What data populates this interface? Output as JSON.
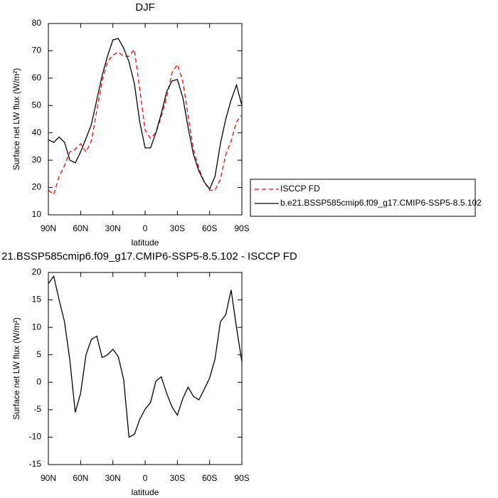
{
  "chart_data": [
    {
      "type": "line",
      "title": "DJF",
      "xlabel": "latitude",
      "ylabel": "Surface net LW flux (W/m²)",
      "x": [
        90,
        85,
        80,
        75,
        70,
        65,
        60,
        55,
        50,
        45,
        40,
        35,
        30,
        25,
        20,
        15,
        10,
        5,
        0,
        -5,
        -10,
        -15,
        -20,
        -25,
        -30,
        -35,
        -40,
        -45,
        -50,
        -55,
        -60,
        -65,
        -70,
        -75,
        -80,
        -85,
        -90
      ],
      "series": [
        {
          "name": "ISCCP FD",
          "color": "#ff0000",
          "style": "dashed",
          "values": [
            19,
            17.5,
            24,
            28,
            33,
            34,
            36,
            33,
            37,
            48,
            59,
            66,
            68.5,
            69.5,
            68,
            68,
            70.5,
            56,
            41,
            38,
            40,
            46,
            53,
            62,
            65,
            59,
            46,
            34,
            27,
            22,
            19,
            19,
            23,
            32,
            37,
            44,
            46.5
          ]
        },
        {
          "name": "b.e21.BSSP585cmip6.f09_g17.CMIP6-SSP5-8.5.102",
          "color": "#000000",
          "style": "solid",
          "values": [
            37.5,
            36.5,
            38.5,
            36.5,
            30,
            29,
            33,
            38,
            43,
            52,
            61,
            68,
            74,
            74.5,
            71,
            66,
            58,
            44,
            34.5,
            34.5,
            40,
            47,
            55,
            59,
            59.5,
            53,
            42,
            32,
            26,
            22,
            19.5,
            24,
            36,
            45,
            52,
            57.5,
            50
          ]
        }
      ],
      "xlim": [
        90,
        -90
      ],
      "xticks": [
        {
          "value": 90,
          "label": "90N"
        },
        {
          "value": 60,
          "label": "60N"
        },
        {
          "value": 30,
          "label": "30N"
        },
        0,
        {
          "value": -30,
          "label": "30S"
        },
        {
          "value": -60,
          "label": "60S"
        },
        {
          "value": -90,
          "label": "90S"
        }
      ],
      "ylim": [
        10,
        80
      ],
      "yticks": [
        10,
        20,
        30,
        40,
        50,
        60,
        70,
        80
      ],
      "legend": "right"
    },
    {
      "type": "line",
      "title": "21.BSSP585cmip6.f09_g17.CMIP6-SSP5-8.5.102 - ISCCP FD",
      "xlabel": "latitude",
      "ylabel": "Surface net LW flux (W/m²)",
      "x": [
        90,
        85,
        80,
        75,
        70,
        65,
        60,
        55,
        50,
        45,
        40,
        35,
        30,
        25,
        20,
        15,
        10,
        5,
        0,
        -5,
        -10,
        -15,
        -20,
        -25,
        -30,
        -35,
        -40,
        -45,
        -50,
        -55,
        -60,
        -65,
        -70,
        -75,
        -80,
        -85,
        -90
      ],
      "series": [
        {
          "color": "#000000",
          "style": "solid",
          "values": [
            18,
            19.3,
            15,
            11,
            4,
            -5.5,
            -2,
            5,
            7.8,
            8.4,
            4.5,
            5,
            6,
            4.7,
            0.5,
            -10,
            -9.5,
            -6.8,
            -4.9,
            -3.7,
            0.2,
            1,
            -2,
            -4.5,
            -6,
            -3,
            -0.9,
            -2.6,
            -3.2,
            -1.3,
            0.8,
            4.2,
            11,
            12.3,
            16.8,
            10,
            3.7
          ]
        }
      ],
      "xlim": [
        90,
        -90
      ],
      "xticks": [
        {
          "value": 90,
          "label": "90N"
        },
        {
          "value": 60,
          "label": "60N"
        },
        {
          "value": 30,
          "label": "30N"
        },
        0,
        {
          "value": -30,
          "label": "30S"
        },
        {
          "value": -60,
          "label": "60S"
        },
        {
          "value": -90,
          "label": "90S"
        }
      ],
      "ylim": [
        -15,
        20
      ],
      "yticks": [
        -15,
        -10,
        -5,
        0,
        5,
        10,
        15,
        20
      ]
    }
  ]
}
